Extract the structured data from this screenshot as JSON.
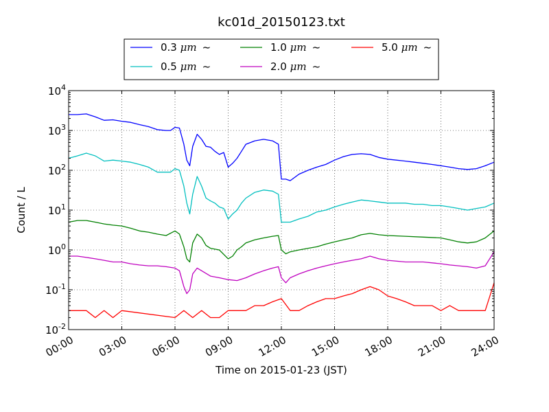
{
  "chart_data": {
    "type": "line",
    "title": "kc01d_20150123.txt",
    "xlabel": "Time on 2015-01-23 (JST)",
    "ylabel": "Count / L",
    "yscale": "log",
    "ylim": [
      0.01,
      10000
    ],
    "xlim": [
      "00:00",
      "24:00"
    ],
    "x_ticks": [
      "00:00",
      "03:00",
      "06:00",
      "09:00",
      "12:00",
      "15:00",
      "18:00",
      "21:00",
      "24:00"
    ],
    "y_ticks": [
      {
        "base": "10",
        "exp": "-2",
        "value": 0.01
      },
      {
        "base": "10",
        "exp": "-1",
        "value": 0.1
      },
      {
        "base": "10",
        "exp": "0",
        "value": 1
      },
      {
        "base": "10",
        "exp": "1",
        "value": 10
      },
      {
        "base": "10",
        "exp": "2",
        "value": 100
      },
      {
        "base": "10",
        "exp": "3",
        "value": 1000
      },
      {
        "base": "10",
        "exp": "4",
        "value": 10000
      }
    ],
    "grid": true,
    "legend_position": "top",
    "series": [
      {
        "name": "0.3 μm ~",
        "legend_main": "0.3 ",
        "legend_unit": "μm",
        "legend_tail": "~",
        "color": "#0000ff",
        "x": [
          "00:00",
          "00:30",
          "01:00",
          "01:30",
          "02:00",
          "02:30",
          "03:00",
          "03:30",
          "04:00",
          "04:30",
          "05:00",
          "05:30",
          "05:45",
          "06:00",
          "06:15",
          "06:30",
          "06:40",
          "06:50",
          "07:00",
          "07:15",
          "07:30",
          "07:45",
          "08:00",
          "08:15",
          "08:30",
          "08:45",
          "09:00",
          "09:15",
          "09:30",
          "09:45",
          "10:00",
          "10:30",
          "11:00",
          "11:30",
          "11:50",
          "12:00",
          "12:15",
          "12:30",
          "13:00",
          "13:30",
          "14:00",
          "14:30",
          "15:00",
          "15:30",
          "16:00",
          "16:30",
          "17:00",
          "17:30",
          "18:00",
          "19:00",
          "19:30",
          "20:00",
          "20:30",
          "21:00",
          "21:30",
          "22:00",
          "22:30",
          "23:00",
          "23:30",
          "24:00"
        ],
        "y": [
          2500,
          2500,
          2600,
          2200,
          1800,
          1850,
          1700,
          1600,
          1400,
          1250,
          1050,
          1000,
          1000,
          1200,
          1150,
          450,
          180,
          130,
          400,
          800,
          600,
          400,
          380,
          300,
          250,
          280,
          120,
          150,
          200,
          300,
          450,
          550,
          600,
          550,
          450,
          60,
          60,
          55,
          80,
          100,
          120,
          140,
          180,
          220,
          250,
          260,
          250,
          210,
          190,
          170,
          160,
          150,
          140,
          130,
          120,
          110,
          105,
          110,
          130,
          160
        ]
      },
      {
        "name": "0.5 μm ~",
        "legend_main": "0.5 ",
        "legend_unit": "μm",
        "legend_tail": "~",
        "color": "#00bfbf",
        "x": [
          "00:00",
          "00:30",
          "01:00",
          "01:30",
          "02:00",
          "02:30",
          "03:00",
          "03:30",
          "04:00",
          "04:30",
          "05:00",
          "05:30",
          "05:45",
          "06:00",
          "06:15",
          "06:30",
          "06:40",
          "06:50",
          "07:00",
          "07:15",
          "07:30",
          "07:45",
          "08:00",
          "08:15",
          "08:30",
          "08:45",
          "09:00",
          "09:15",
          "09:30",
          "09:45",
          "10:00",
          "10:30",
          "11:00",
          "11:30",
          "11:50",
          "12:00",
          "12:15",
          "12:30",
          "13:00",
          "13:30",
          "14:00",
          "14:30",
          "15:00",
          "15:30",
          "16:00",
          "16:30",
          "17:00",
          "17:30",
          "18:00",
          "19:00",
          "19:30",
          "20:00",
          "20:30",
          "21:00",
          "21:30",
          "22:00",
          "22:30",
          "23:00",
          "23:30",
          "24:00"
        ],
        "y": [
          200,
          230,
          270,
          230,
          170,
          180,
          170,
          160,
          140,
          120,
          90,
          90,
          90,
          110,
          100,
          40,
          15,
          8,
          25,
          70,
          40,
          20,
          17,
          15,
          12,
          11,
          6,
          8,
          10,
          15,
          20,
          28,
          32,
          30,
          25,
          5,
          5,
          5,
          6,
          7,
          9,
          10,
          12,
          14,
          16,
          18,
          17,
          16,
          15,
          15,
          14,
          14,
          13,
          13,
          12,
          11,
          10,
          11,
          12,
          15
        ]
      },
      {
        "name": "1.0 μm ~",
        "legend_main": "1.0 ",
        "legend_unit": "μm",
        "legend_tail": "~",
        "color": "#008000",
        "x": [
          "00:00",
          "00:30",
          "01:00",
          "01:30",
          "02:00",
          "02:30",
          "03:00",
          "03:30",
          "04:00",
          "04:30",
          "05:00",
          "05:30",
          "06:00",
          "06:15",
          "06:30",
          "06:40",
          "06:50",
          "07:00",
          "07:15",
          "07:30",
          "07:45",
          "08:00",
          "08:30",
          "09:00",
          "09:15",
          "09:30",
          "09:45",
          "10:00",
          "10:30",
          "11:00",
          "11:30",
          "11:50",
          "12:00",
          "12:15",
          "12:30",
          "13:00",
          "13:30",
          "14:00",
          "14:30",
          "15:00",
          "15:30",
          "16:00",
          "16:30",
          "17:00",
          "17:30",
          "18:00",
          "19:00",
          "20:00",
          "21:00",
          "21:30",
          "22:00",
          "22:30",
          "23:00",
          "23:30",
          "24:00"
        ],
        "y": [
          5,
          5.5,
          5.5,
          5,
          4.5,
          4.2,
          4,
          3.5,
          3,
          2.8,
          2.5,
          2.3,
          3,
          2.5,
          1.2,
          0.6,
          0.5,
          1.5,
          2.5,
          2,
          1.3,
          1.1,
          1,
          0.6,
          0.7,
          1,
          1.2,
          1.5,
          1.8,
          2,
          2.2,
          2.3,
          1,
          0.8,
          0.9,
          1,
          1.1,
          1.2,
          1.4,
          1.6,
          1.8,
          2,
          2.4,
          2.6,
          2.4,
          2.3,
          2.2,
          2.1,
          2,
          1.8,
          1.6,
          1.5,
          1.6,
          2,
          3
        ]
      },
      {
        "name": "2.0 μm ~",
        "legend_main": "2.0 ",
        "legend_unit": "μm",
        "legend_tail": "~",
        "color": "#bf00bf",
        "x": [
          "00:00",
          "00:30",
          "01:00",
          "01:30",
          "02:00",
          "02:30",
          "03:00",
          "03:30",
          "04:00",
          "04:30",
          "05:00",
          "05:30",
          "06:00",
          "06:15",
          "06:30",
          "06:40",
          "06:50",
          "07:00",
          "07:15",
          "07:30",
          "08:00",
          "08:30",
          "09:00",
          "09:30",
          "10:00",
          "10:30",
          "11:00",
          "11:30",
          "11:50",
          "12:00",
          "12:15",
          "12:30",
          "13:00",
          "13:30",
          "14:00",
          "14:30",
          "15:00",
          "15:30",
          "16:00",
          "16:30",
          "17:00",
          "17:30",
          "18:00",
          "19:00",
          "20:00",
          "21:00",
          "21:30",
          "22:00",
          "22:30",
          "23:00",
          "23:30",
          "24:00"
        ],
        "y": [
          0.7,
          0.7,
          0.65,
          0.6,
          0.55,
          0.5,
          0.5,
          0.45,
          0.42,
          0.4,
          0.4,
          0.38,
          0.35,
          0.3,
          0.12,
          0.08,
          0.1,
          0.25,
          0.35,
          0.3,
          0.22,
          0.2,
          0.18,
          0.17,
          0.2,
          0.25,
          0.3,
          0.35,
          0.38,
          0.2,
          0.15,
          0.2,
          0.25,
          0.3,
          0.35,
          0.4,
          0.45,
          0.5,
          0.55,
          0.6,
          0.7,
          0.6,
          0.55,
          0.5,
          0.5,
          0.45,
          0.42,
          0.4,
          0.38,
          0.35,
          0.4,
          0.9
        ]
      },
      {
        "name": "5.0 μm ~",
        "legend_main": "5.0 ",
        "legend_unit": "μm",
        "legend_tail": "~",
        "color": "#ff0000",
        "note_values": "values at 0.01 and below drop to the axis floor",
        "x": [
          "00:00",
          "00:30",
          "01:00",
          "01:30",
          "02:00",
          "02:30",
          "03:00",
          "06:00",
          "06:30",
          "07:00",
          "07:30",
          "08:00",
          "08:30",
          "09:00",
          "09:30",
          "10:00",
          "10:30",
          "11:00",
          "11:30",
          "12:00",
          "12:30",
          "13:00",
          "13:30",
          "14:00",
          "14:30",
          "15:00",
          "15:30",
          "16:00",
          "16:30",
          "17:00",
          "17:30",
          "18:00",
          "18:30",
          "19:00",
          "19:30",
          "20:00",
          "20:30",
          "21:00",
          "21:30",
          "22:00",
          "22:30",
          "23:00",
          "23:30",
          "24:00"
        ],
        "y": [
          0.03,
          0.03,
          0.03,
          0.02,
          0.03,
          0.02,
          0.03,
          0.02,
          0.03,
          0.02,
          0.03,
          0.02,
          0.02,
          0.03,
          0.03,
          0.03,
          0.04,
          0.04,
          0.05,
          0.06,
          0.03,
          0.03,
          0.04,
          0.05,
          0.06,
          0.06,
          0.07,
          0.08,
          0.1,
          0.12,
          0.1,
          0.07,
          0.06,
          0.05,
          0.04,
          0.04,
          0.04,
          0.03,
          0.04,
          0.03,
          0.03,
          0.03,
          0.03,
          0.15
        ]
      }
    ]
  }
}
